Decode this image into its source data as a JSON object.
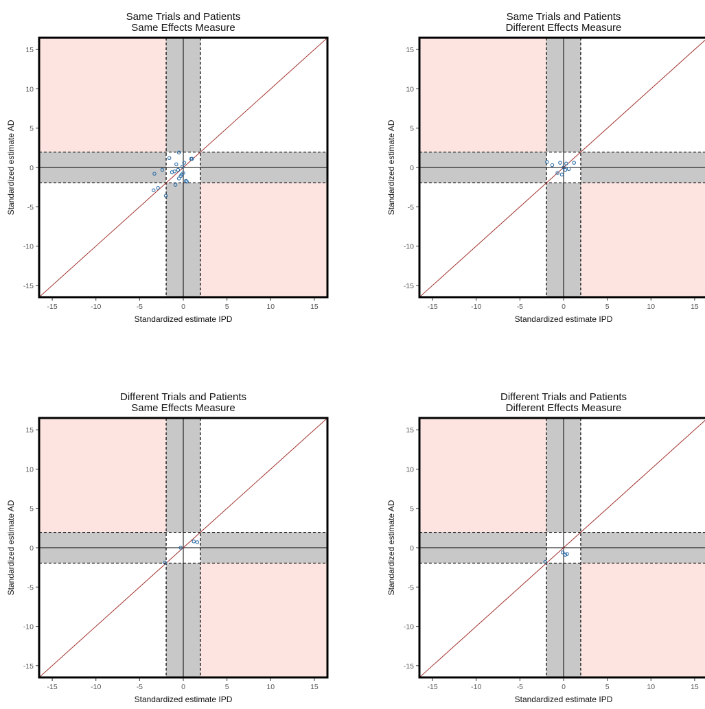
{
  "figure": {
    "colors": {
      "pink": "#fde4e1",
      "band": "#c8c8c8",
      "diagonal": "#a0302c",
      "points": "#2f6fa8",
      "frame": "#000000"
    }
  },
  "chart_data": [
    {
      "type": "scatter",
      "title": [
        "Same Trials and Patients",
        "Same Effects Measure"
      ],
      "xlabel": "Standardized estimate IPD",
      "ylabel": "Standardized estimate AD",
      "xlim": [
        -16.5,
        16.5
      ],
      "ylim": [
        -16.5,
        16.5
      ],
      "ticks": [
        -15,
        -10,
        -5,
        0,
        5,
        10,
        15
      ],
      "band_limit": 1.96,
      "reference_line": "y = x",
      "points": [
        [
          -3.4,
          -2.9
        ],
        [
          -2.9,
          -2.6
        ],
        [
          -3.3,
          -0.8
        ],
        [
          -2.4,
          -0.3
        ],
        [
          -2.0,
          -3.6
        ],
        [
          -1.6,
          1.2
        ],
        [
          -1.3,
          -0.6
        ],
        [
          -1.0,
          -0.5
        ],
        [
          -0.9,
          -2.2
        ],
        [
          -0.8,
          0.4
        ],
        [
          -0.6,
          -0.3
        ],
        [
          -0.5,
          1.9
        ],
        [
          -0.3,
          -1.1
        ],
        [
          -0.1,
          0.1
        ],
        [
          0.0,
          -0.7
        ],
        [
          0.1,
          0.6
        ],
        [
          -0.2,
          -0.9
        ],
        [
          0.3,
          -1.7
        ],
        [
          0.4,
          -1.8
        ],
        [
          0.9,
          1.1
        ],
        [
          1.0,
          1.1
        ],
        [
          -0.5,
          -1.4
        ]
      ]
    },
    {
      "type": "scatter",
      "title": [
        "Same Trials and Patients",
        "Different Effects Measure"
      ],
      "xlabel": "Standardized estimate IPD",
      "ylabel": "Standardized estimate AD",
      "xlim": [
        -16.5,
        16.5
      ],
      "ylim": [
        -16.5,
        16.5
      ],
      "ticks": [
        -15,
        -10,
        -5,
        0,
        5,
        10,
        15
      ],
      "band_limit": 1.96,
      "reference_line": "y = x",
      "points": [
        [
          -1.9,
          0.7
        ],
        [
          -1.3,
          0.3
        ],
        [
          -0.7,
          -0.7
        ],
        [
          -0.4,
          0.6
        ],
        [
          -0.2,
          -0.9
        ],
        [
          0.0,
          0.0
        ],
        [
          0.2,
          -0.3
        ],
        [
          0.3,
          0.5
        ],
        [
          0.6,
          -0.2
        ],
        [
          1.2,
          0.6
        ]
      ]
    },
    {
      "type": "scatter",
      "title": [
        "Different Trials and Patients",
        "Same Effects Measure"
      ],
      "xlabel": "Standardized estimate IPD",
      "ylabel": "Standardized estimate AD",
      "xlim": [
        -16.5,
        16.5
      ],
      "ylim": [
        -16.5,
        16.5
      ],
      "ticks": [
        -15,
        -10,
        -5,
        0,
        5,
        10,
        15
      ],
      "band_limit": 1.96,
      "reference_line": "y = x",
      "points": [
        [
          -2.1,
          -1.9
        ],
        [
          -0.3,
          0.0
        ],
        [
          1.2,
          0.8
        ],
        [
          1.6,
          0.7
        ]
      ]
    },
    {
      "type": "scatter",
      "title": [
        "Different Trials and Patients",
        "Different Effects Measure"
      ],
      "xlabel": "Standardized estimate IPD",
      "ylabel": "Standardized estimate AD",
      "xlim": [
        -16.5,
        16.5
      ],
      "ylim": [
        -16.5,
        16.5
      ],
      "ticks": [
        -15,
        -10,
        -5,
        0,
        5,
        10,
        15
      ],
      "band_limit": 1.96,
      "reference_line": "y = x",
      "points": [
        [
          -2.1,
          -1.8
        ],
        [
          -0.1,
          -0.6
        ],
        [
          0.2,
          -0.9
        ],
        [
          0.4,
          -0.8
        ]
      ]
    }
  ]
}
